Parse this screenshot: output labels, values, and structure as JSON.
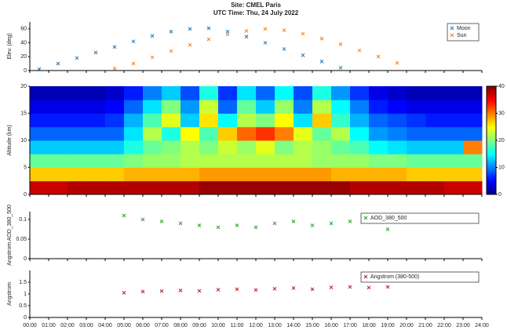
{
  "chart_data": [
    {
      "type": "scatter",
      "title": "Site: CMEL Paris",
      "subtitle": "UTC Time: Thu, 24 July 2022",
      "y_label": "Elev. (deg)",
      "xlim": [
        0,
        24
      ],
      "ylim": [
        0,
        70
      ],
      "yticks": [
        0,
        20,
        40,
        60
      ],
      "legend": "upper right",
      "series": [
        {
          "name": "Moon",
          "color": "#1f77b4",
          "x": [
            0.5,
            1.5,
            2.5,
            3.5,
            4.5,
            5.5,
            6.5,
            7.5,
            8.5,
            9.5,
            10.5,
            11.5,
            12.5,
            13.5,
            14.5,
            15.5,
            16.5
          ],
          "values": [
            2,
            10,
            18,
            26,
            34,
            42,
            50,
            56,
            60,
            61,
            56,
            49,
            40,
            31,
            22,
            13,
            4
          ]
        },
        {
          "name": "Sun",
          "color": "#ff7f0e",
          "x": [
            4.5,
            5.5,
            6.5,
            7.5,
            8.5,
            9.5,
            10.5,
            11.5,
            12.5,
            13.5,
            14.5,
            15.5,
            16.5,
            17.5,
            18.5,
            19.5
          ],
          "values": [
            3,
            10,
            19,
            28,
            37,
            45,
            52,
            57,
            60,
            58,
            53,
            46,
            38,
            29,
            20,
            11
          ]
        }
      ]
    },
    {
      "type": "heatmap",
      "y_label": "Altitude (km)",
      "xlim": [
        0,
        24
      ],
      "ylim": [
        0,
        20
      ],
      "yticks": [
        0,
        5,
        10,
        15,
        20
      ],
      "x": [
        0,
        1,
        2,
        3,
        4,
        5,
        6,
        7,
        8,
        9,
        10,
        11,
        12,
        13,
        14,
        15,
        16,
        17,
        18,
        19,
        20,
        21,
        22,
        23
      ],
      "y": [
        0,
        2.5,
        5,
        7.5,
        10,
        12.5,
        15,
        17.5
      ],
      "zlim": [
        0,
        40
      ],
      "zticks": [
        0,
        10,
        20,
        30,
        40
      ],
      "z": [
        [
          37,
          37,
          38,
          38,
          38,
          38,
          38,
          38,
          38,
          39,
          39,
          39,
          39,
          39,
          39,
          39,
          39,
          38,
          38,
          38,
          38,
          38,
          37,
          37
        ],
        [
          27,
          27,
          27,
          27,
          27,
          28,
          28,
          28,
          28,
          29,
          29,
          29,
          29,
          29,
          29,
          29,
          28,
          28,
          28,
          28,
          27,
          27,
          27,
          27
        ],
        [
          19,
          19,
          19,
          19,
          19,
          20,
          21,
          21,
          22,
          22,
          22,
          22,
          22,
          22,
          22,
          21,
          21,
          21,
          20,
          20,
          19,
          19,
          19,
          19
        ],
        [
          13,
          13,
          13,
          13,
          13,
          16,
          19,
          20,
          22,
          20,
          23,
          21,
          24,
          20,
          22,
          21,
          19,
          18,
          15,
          14,
          13,
          13,
          13,
          30
        ],
        [
          9,
          9,
          9,
          9,
          9,
          14,
          22,
          16,
          25,
          18,
          27,
          31,
          33,
          30,
          24,
          19,
          22,
          15,
          11,
          10,
          9,
          9,
          9,
          9
        ],
        [
          6,
          6,
          6,
          6,
          7,
          12,
          18,
          24,
          13,
          26,
          15,
          22,
          20,
          25,
          14,
          27,
          17,
          12,
          9,
          8,
          7,
          6,
          6,
          6
        ],
        [
          4,
          4,
          4,
          4,
          5,
          9,
          14,
          20,
          11,
          23,
          9,
          19,
          13,
          21,
          10,
          22,
          15,
          10,
          6,
          5,
          4,
          4,
          4,
          4
        ],
        [
          2,
          2,
          2,
          2,
          3,
          6,
          10,
          13,
          8,
          16,
          7,
          14,
          9,
          15,
          8,
          16,
          11,
          7,
          4,
          3,
          2,
          2,
          2,
          2
        ]
      ]
    },
    {
      "type": "scatter",
      "y_label": "Angstrom AOD_380_500",
      "xlim": [
        0,
        24
      ],
      "ylim": [
        0,
        0.12
      ],
      "yticks": [
        0,
        0.05,
        0.1
      ],
      "legend": "upper right",
      "series": [
        {
          "name": "AOD_380_500",
          "color": "#2ca02c",
          "x": [
            5,
            6,
            7,
            8,
            9,
            10,
            11,
            12,
            13,
            14,
            15,
            16,
            17,
            18,
            19
          ],
          "values": [
            0.11,
            0.1,
            0.095,
            0.09,
            0.085,
            0.08,
            0.085,
            0.08,
            0.09,
            0.095,
            0.085,
            0.09,
            0.095,
            0.1,
            0.075
          ]
        }
      ]
    },
    {
      "type": "scatter",
      "y_label": "Angstrom",
      "xlim": [
        0,
        24
      ],
      "ylim": [
        0,
        2
      ],
      "yticks": [
        0,
        0.5,
        1,
        1.5
      ],
      "legend": "upper right",
      "series": [
        {
          "name": "Angstrom (380-500)",
          "color": "#b22222",
          "x": [
            5,
            6,
            7,
            8,
            9,
            10,
            11,
            12,
            13,
            14,
            15,
            16,
            17,
            18,
            19
          ],
          "values": [
            1.05,
            1.1,
            1.12,
            1.15,
            1.13,
            1.18,
            1.2,
            1.17,
            1.22,
            1.25,
            1.2,
            1.28,
            1.3,
            1.27,
            1.3
          ]
        }
      ],
      "xticks": [
        {
          "value": 0,
          "label": "00:00"
        },
        {
          "value": 1,
          "label": "01:00"
        },
        {
          "value": 2,
          "label": "02:00"
        },
        {
          "value": 3,
          "label": "03:00"
        },
        {
          "value": 4,
          "label": "04:00"
        },
        {
          "value": 5,
          "label": "05:00"
        },
        {
          "value": 6,
          "label": "06:00"
        },
        {
          "value": 7,
          "label": "07:00"
        },
        {
          "value": 8,
          "label": "08:00"
        },
        {
          "value": 9,
          "label": "09:00"
        },
        {
          "value": 10,
          "label": "10:00"
        },
        {
          "value": 11,
          "label": "11:00"
        },
        {
          "value": 12,
          "label": "12:00"
        },
        {
          "value": 13,
          "label": "13:00"
        },
        {
          "value": 14,
          "label": "14:00"
        },
        {
          "value": 15,
          "label": "15:00"
        },
        {
          "value": 16,
          "label": "16:00"
        },
        {
          "value": 17,
          "label": "17:00"
        },
        {
          "value": 18,
          "label": "18:00"
        },
        {
          "value": 19,
          "label": "19:00"
        },
        {
          "value": 20,
          "label": "20:00"
        },
        {
          "value": 21,
          "label": "21:00"
        },
        {
          "value": 22,
          "label": "22:00"
        },
        {
          "value": 23,
          "label": "23:00"
        },
        {
          "value": 24,
          "label": "24:00"
        }
      ]
    }
  ]
}
